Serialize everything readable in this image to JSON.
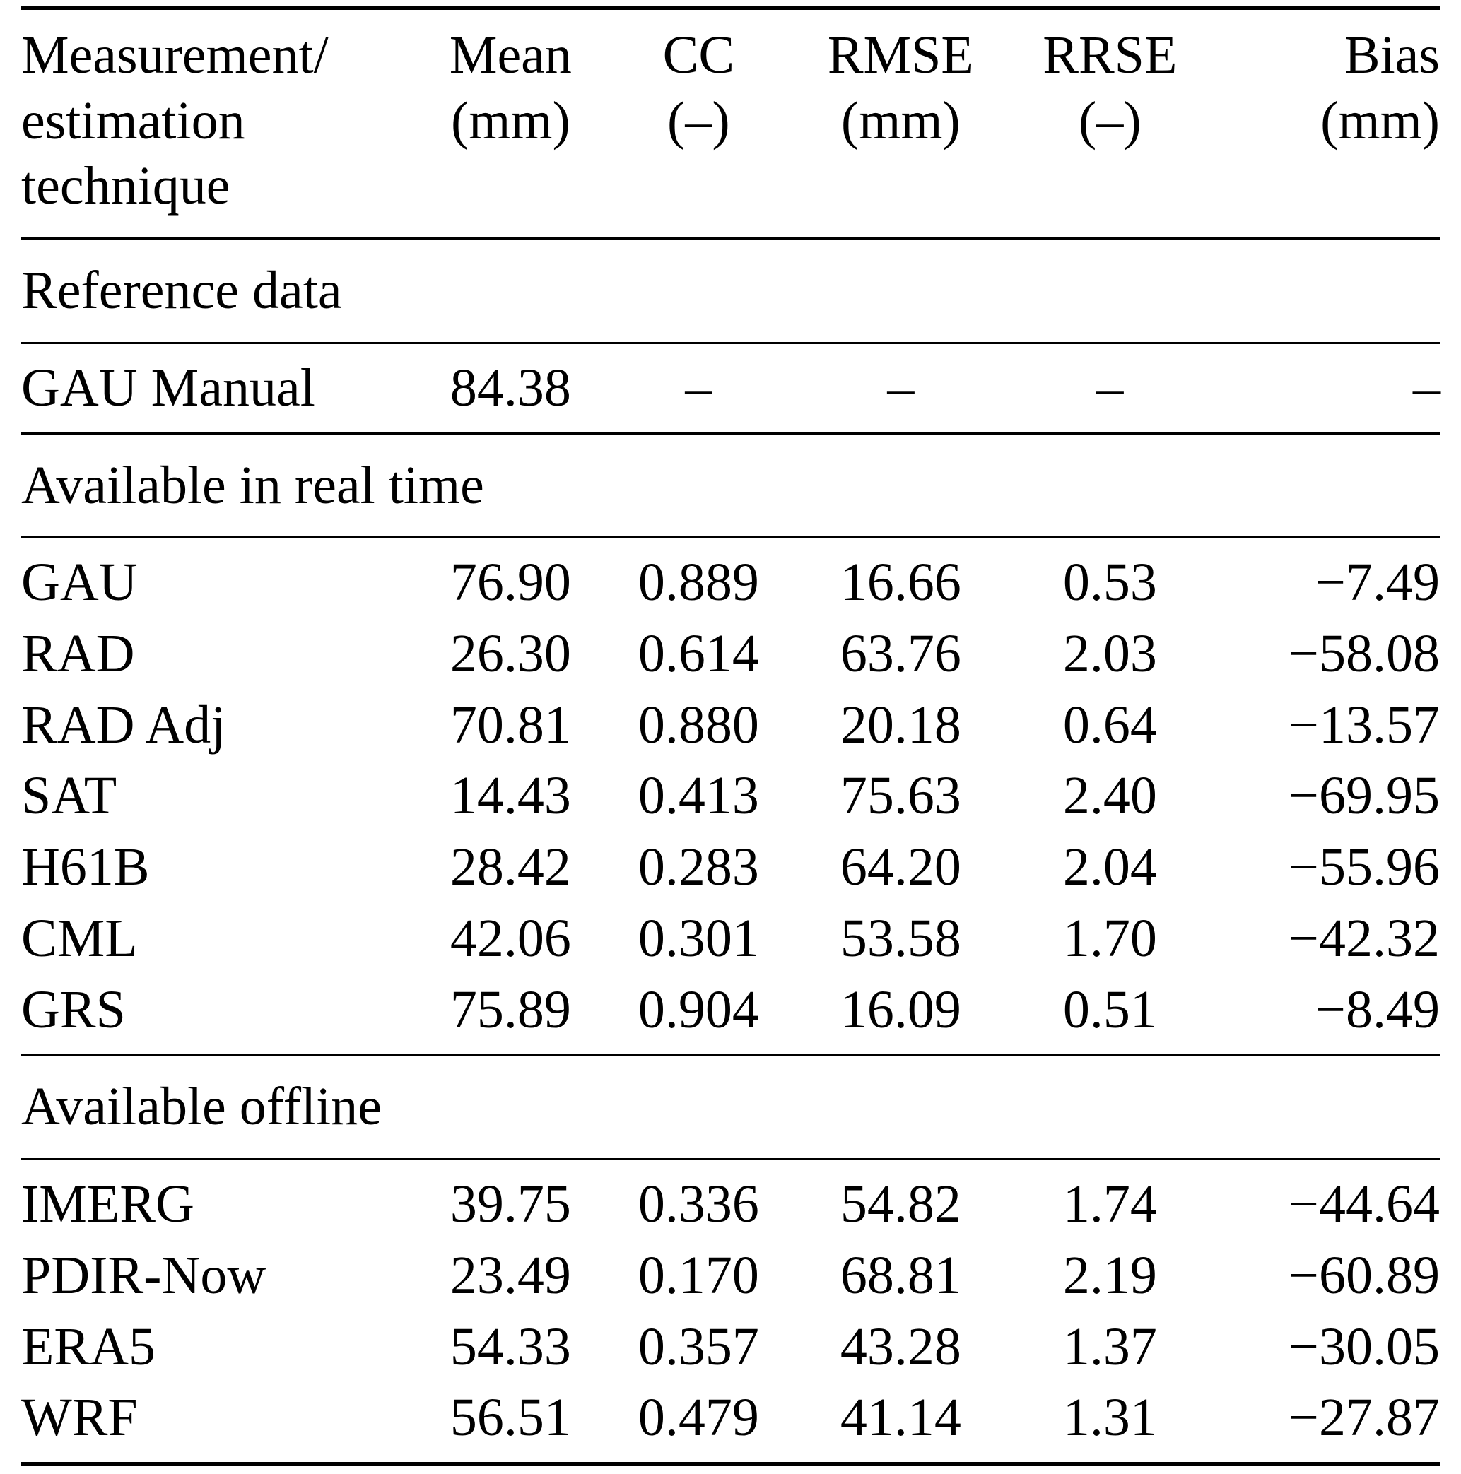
{
  "table": {
    "header": {
      "technique_lines": [
        "Measurement/",
        "estimation",
        "technique"
      ],
      "columns": [
        {
          "name": "Mean",
          "unit": "(mm)"
        },
        {
          "name": "CC",
          "unit": "(–)"
        },
        {
          "name": "RMSE",
          "unit": "(mm)"
        },
        {
          "name": "RRSE",
          "unit": "(–)"
        },
        {
          "name": "Bias",
          "unit": "(mm)"
        }
      ]
    },
    "sections": [
      {
        "title": "Reference data",
        "rows": [
          {
            "label": "GAU Manual",
            "values": [
              "84.38",
              "–",
              "–",
              "–",
              "–"
            ]
          }
        ]
      },
      {
        "title": "Available in real time",
        "rows": [
          {
            "label": "GAU",
            "values": [
              "76.90",
              "0.889",
              "16.66",
              "0.53",
              "−7.49"
            ]
          },
          {
            "label": "RAD",
            "values": [
              "26.30",
              "0.614",
              "63.76",
              "2.03",
              "−58.08"
            ]
          },
          {
            "label": "RAD Adj",
            "values": [
              "70.81",
              "0.880",
              "20.18",
              "0.64",
              "−13.57"
            ]
          },
          {
            "label": "SAT",
            "values": [
              "14.43",
              "0.413",
              "75.63",
              "2.40",
              "−69.95"
            ]
          },
          {
            "label": "H61B",
            "values": [
              "28.42",
              "0.283",
              "64.20",
              "2.04",
              "−55.96"
            ]
          },
          {
            "label": "CML",
            "values": [
              "42.06",
              "0.301",
              "53.58",
              "1.70",
              "−42.32"
            ]
          },
          {
            "label": "GRS",
            "values": [
              "75.89",
              "0.904",
              "16.09",
              "0.51",
              "−8.49"
            ]
          }
        ]
      },
      {
        "title": "Available offline",
        "rows": [
          {
            "label": "IMERG",
            "values": [
              "39.75",
              "0.336",
              "54.82",
              "1.74",
              "−44.64"
            ]
          },
          {
            "label": "PDIR-Now",
            "values": [
              "23.49",
              "0.170",
              "68.81",
              "2.19",
              "−60.89"
            ]
          },
          {
            "label": "ERA5",
            "values": [
              "54.33",
              "0.357",
              "43.28",
              "1.37",
              "−30.05"
            ]
          },
          {
            "label": "WRF",
            "values": [
              "56.51",
              "0.479",
              "41.14",
              "1.31",
              "−27.87"
            ]
          }
        ]
      }
    ]
  }
}
